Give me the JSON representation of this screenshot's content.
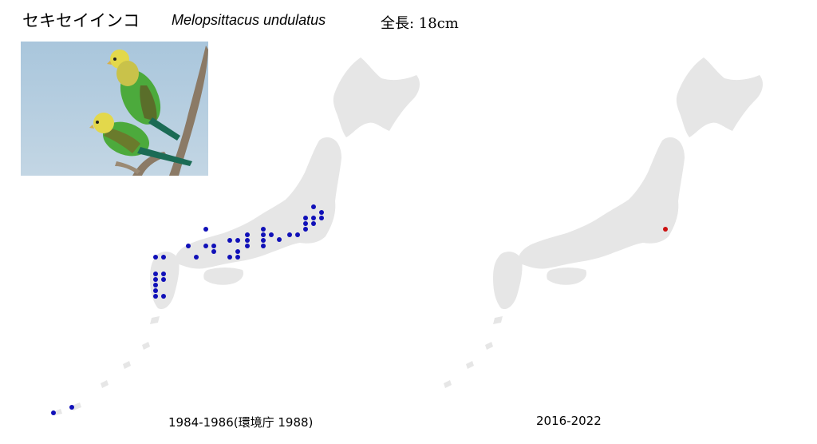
{
  "header": {
    "title_japanese": "セキセイインコ",
    "title_scientific": "Melopsittacus undulatus",
    "body_length": "全長: 18cm"
  },
  "maps": [
    {
      "id": "left",
      "caption": "1984-1986(環境庁 1988)",
      "dot_color": "#1010b8",
      "record_count": 38
    },
    {
      "id": "right",
      "caption": "2016-2022",
      "dot_color": "#cc1111",
      "record_count": 1
    }
  ],
  "colors": {
    "land": "#e6e6e6",
    "background": "#ffffff"
  },
  "photo": {
    "subject": "two budgerigars perched on a branch",
    "icon": "bird-photo"
  }
}
